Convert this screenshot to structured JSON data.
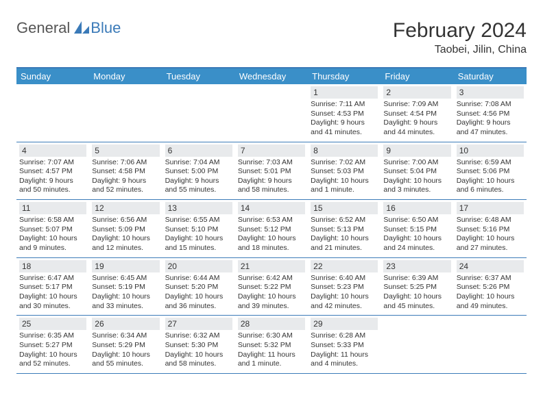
{
  "logo": {
    "text1": "General",
    "text2": "Blue"
  },
  "title": "February 2024",
  "location": "Taobei, Jilin, China",
  "colors": {
    "header_bg": "#3a8fc8",
    "rule": "#3a7ab8",
    "daynum_bg": "#e8eaec",
    "text": "#333333",
    "logo_gray": "#555555",
    "logo_blue": "#3a7ab8",
    "background": "#ffffff"
  },
  "days_of_week": [
    "Sunday",
    "Monday",
    "Tuesday",
    "Wednesday",
    "Thursday",
    "Friday",
    "Saturday"
  ],
  "weeks": [
    [
      {
        "n": "",
        "sr": "",
        "ss": "",
        "dl": ""
      },
      {
        "n": "",
        "sr": "",
        "ss": "",
        "dl": ""
      },
      {
        "n": "",
        "sr": "",
        "ss": "",
        "dl": ""
      },
      {
        "n": "",
        "sr": "",
        "ss": "",
        "dl": ""
      },
      {
        "n": "1",
        "sr": "Sunrise: 7:11 AM",
        "ss": "Sunset: 4:53 PM",
        "dl": "Daylight: 9 hours and 41 minutes."
      },
      {
        "n": "2",
        "sr": "Sunrise: 7:09 AM",
        "ss": "Sunset: 4:54 PM",
        "dl": "Daylight: 9 hours and 44 minutes."
      },
      {
        "n": "3",
        "sr": "Sunrise: 7:08 AM",
        "ss": "Sunset: 4:56 PM",
        "dl": "Daylight: 9 hours and 47 minutes."
      }
    ],
    [
      {
        "n": "4",
        "sr": "Sunrise: 7:07 AM",
        "ss": "Sunset: 4:57 PM",
        "dl": "Daylight: 9 hours and 50 minutes."
      },
      {
        "n": "5",
        "sr": "Sunrise: 7:06 AM",
        "ss": "Sunset: 4:58 PM",
        "dl": "Daylight: 9 hours and 52 minutes."
      },
      {
        "n": "6",
        "sr": "Sunrise: 7:04 AM",
        "ss": "Sunset: 5:00 PM",
        "dl": "Daylight: 9 hours and 55 minutes."
      },
      {
        "n": "7",
        "sr": "Sunrise: 7:03 AM",
        "ss": "Sunset: 5:01 PM",
        "dl": "Daylight: 9 hours and 58 minutes."
      },
      {
        "n": "8",
        "sr": "Sunrise: 7:02 AM",
        "ss": "Sunset: 5:03 PM",
        "dl": "Daylight: 10 hours and 1 minute."
      },
      {
        "n": "9",
        "sr": "Sunrise: 7:00 AM",
        "ss": "Sunset: 5:04 PM",
        "dl": "Daylight: 10 hours and 3 minutes."
      },
      {
        "n": "10",
        "sr": "Sunrise: 6:59 AM",
        "ss": "Sunset: 5:06 PM",
        "dl": "Daylight: 10 hours and 6 minutes."
      }
    ],
    [
      {
        "n": "11",
        "sr": "Sunrise: 6:58 AM",
        "ss": "Sunset: 5:07 PM",
        "dl": "Daylight: 10 hours and 9 minutes."
      },
      {
        "n": "12",
        "sr": "Sunrise: 6:56 AM",
        "ss": "Sunset: 5:09 PM",
        "dl": "Daylight: 10 hours and 12 minutes."
      },
      {
        "n": "13",
        "sr": "Sunrise: 6:55 AM",
        "ss": "Sunset: 5:10 PM",
        "dl": "Daylight: 10 hours and 15 minutes."
      },
      {
        "n": "14",
        "sr": "Sunrise: 6:53 AM",
        "ss": "Sunset: 5:12 PM",
        "dl": "Daylight: 10 hours and 18 minutes."
      },
      {
        "n": "15",
        "sr": "Sunrise: 6:52 AM",
        "ss": "Sunset: 5:13 PM",
        "dl": "Daylight: 10 hours and 21 minutes."
      },
      {
        "n": "16",
        "sr": "Sunrise: 6:50 AM",
        "ss": "Sunset: 5:15 PM",
        "dl": "Daylight: 10 hours and 24 minutes."
      },
      {
        "n": "17",
        "sr": "Sunrise: 6:48 AM",
        "ss": "Sunset: 5:16 PM",
        "dl": "Daylight: 10 hours and 27 minutes."
      }
    ],
    [
      {
        "n": "18",
        "sr": "Sunrise: 6:47 AM",
        "ss": "Sunset: 5:17 PM",
        "dl": "Daylight: 10 hours and 30 minutes."
      },
      {
        "n": "19",
        "sr": "Sunrise: 6:45 AM",
        "ss": "Sunset: 5:19 PM",
        "dl": "Daylight: 10 hours and 33 minutes."
      },
      {
        "n": "20",
        "sr": "Sunrise: 6:44 AM",
        "ss": "Sunset: 5:20 PM",
        "dl": "Daylight: 10 hours and 36 minutes."
      },
      {
        "n": "21",
        "sr": "Sunrise: 6:42 AM",
        "ss": "Sunset: 5:22 PM",
        "dl": "Daylight: 10 hours and 39 minutes."
      },
      {
        "n": "22",
        "sr": "Sunrise: 6:40 AM",
        "ss": "Sunset: 5:23 PM",
        "dl": "Daylight: 10 hours and 42 minutes."
      },
      {
        "n": "23",
        "sr": "Sunrise: 6:39 AM",
        "ss": "Sunset: 5:25 PM",
        "dl": "Daylight: 10 hours and 45 minutes."
      },
      {
        "n": "24",
        "sr": "Sunrise: 6:37 AM",
        "ss": "Sunset: 5:26 PM",
        "dl": "Daylight: 10 hours and 49 minutes."
      }
    ],
    [
      {
        "n": "25",
        "sr": "Sunrise: 6:35 AM",
        "ss": "Sunset: 5:27 PM",
        "dl": "Daylight: 10 hours and 52 minutes."
      },
      {
        "n": "26",
        "sr": "Sunrise: 6:34 AM",
        "ss": "Sunset: 5:29 PM",
        "dl": "Daylight: 10 hours and 55 minutes."
      },
      {
        "n": "27",
        "sr": "Sunrise: 6:32 AM",
        "ss": "Sunset: 5:30 PM",
        "dl": "Daylight: 10 hours and 58 minutes."
      },
      {
        "n": "28",
        "sr": "Sunrise: 6:30 AM",
        "ss": "Sunset: 5:32 PM",
        "dl": "Daylight: 11 hours and 1 minute."
      },
      {
        "n": "29",
        "sr": "Sunrise: 6:28 AM",
        "ss": "Sunset: 5:33 PM",
        "dl": "Daylight: 11 hours and 4 minutes."
      },
      {
        "n": "",
        "sr": "",
        "ss": "",
        "dl": ""
      },
      {
        "n": "",
        "sr": "",
        "ss": "",
        "dl": ""
      }
    ]
  ]
}
